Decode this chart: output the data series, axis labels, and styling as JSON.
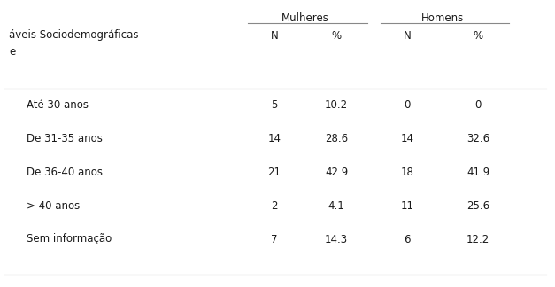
{
  "header_mulheres": "Mulheres",
  "header_homens": "Homens",
  "col_header_left": "áveis Sociodemográficas",
  "col_header_sub_left": "e",
  "subheaders": [
    "N",
    "%",
    "N",
    "%"
  ],
  "row_labels": [
    "Até 30 anos",
    "De 31-35 anos",
    "De 36-40 anos",
    "> 40 anos",
    "Sem informação"
  ],
  "mulheres_n": [
    "5",
    "14",
    "21",
    "2",
    "7"
  ],
  "mulheres_pct": [
    "10.2",
    "28.6",
    "42.9",
    "4.1",
    "14.3"
  ],
  "homens_n": [
    "0",
    "14",
    "18",
    "11",
    "6"
  ],
  "homens_pct": [
    "0",
    "32.6",
    "41.9",
    "25.6",
    "12.2"
  ],
  "bg_color": "#ffffff",
  "text_color": "#1a1a1a",
  "line_color": "#888888",
  "font_size": 8.5
}
